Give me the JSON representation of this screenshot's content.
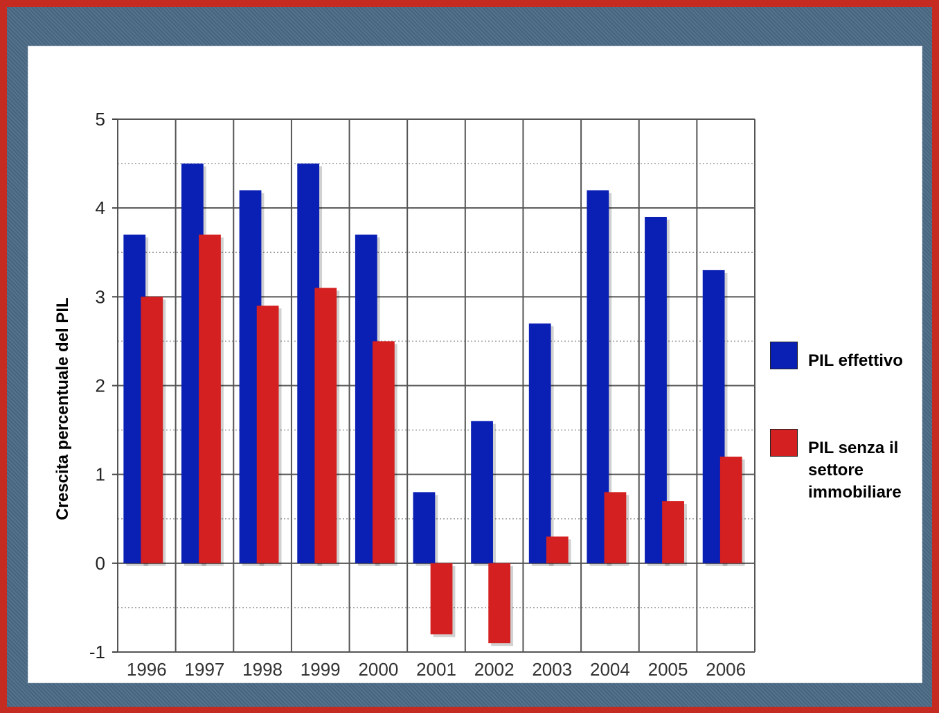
{
  "chart_data": {
    "type": "bar",
    "categories": [
      "1996",
      "1997",
      "1998",
      "1999",
      "2000",
      "2001",
      "2002",
      "2003",
      "2004",
      "2005",
      "2006"
    ],
    "series": [
      {
        "name": "PIL effettivo",
        "color": "#0a1fb4",
        "values": [
          3.7,
          4.5,
          4.2,
          4.5,
          3.7,
          0.8,
          1.6,
          2.7,
          4.2,
          3.9,
          3.3
        ]
      },
      {
        "name": "PIL senza il settore immobiliare",
        "color": "#d42020",
        "values": [
          3.0,
          3.7,
          2.9,
          3.1,
          2.5,
          -0.8,
          -0.9,
          0.3,
          0.8,
          0.7,
          1.2
        ]
      }
    ],
    "ylabel": "Crescita percentuale del PIL",
    "xlabel": "",
    "ylim": [
      -1,
      5
    ],
    "yticks": [
      "-1",
      "0",
      "1",
      "2",
      "3",
      "4",
      "5"
    ],
    "grid": true,
    "legend_position": "right"
  },
  "legend": {
    "items": [
      {
        "label": "PIL effettivo",
        "color": "#0a1fb4"
      },
      {
        "label": "PIL senza il settore immobiliare",
        "color": "#d42020"
      }
    ]
  }
}
